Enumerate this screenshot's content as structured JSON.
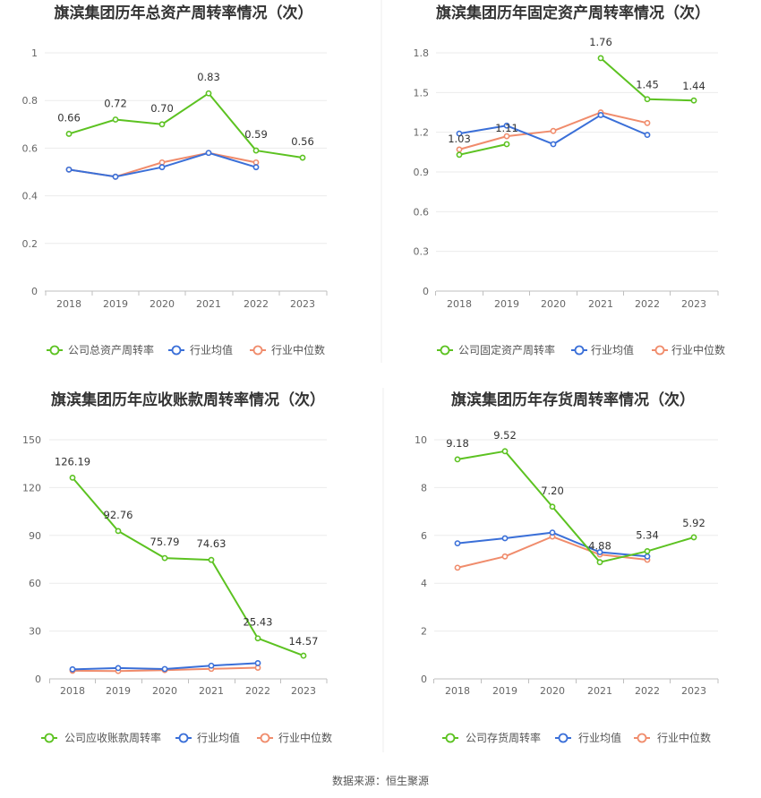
{
  "source_label": "数据来源：恒生聚源",
  "chart_data": [
    {
      "type": "line",
      "title": "旗滨集团历年总资产周转率情况（次）",
      "categories": [
        "2018",
        "2019",
        "2020",
        "2021",
        "2022",
        "2023"
      ],
      "ylim": [
        0,
        1
      ],
      "yticks": [
        "0",
        "0.2",
        "0.4",
        "0.6",
        "0.8",
        "1"
      ],
      "grid": true,
      "legend_position": "bottom",
      "series": [
        {
          "name": "公司总资产周转率",
          "color": "#5cc221",
          "labels": [
            "0.66",
            "0.72",
            "0.70",
            "0.83",
            "0.59",
            "0.56"
          ],
          "values": [
            0.66,
            0.72,
            0.7,
            0.83,
            0.59,
            0.56
          ]
        },
        {
          "name": "行业均值",
          "color": "#3a6fd8",
          "values": [
            0.51,
            0.48,
            0.52,
            0.58,
            0.52,
            null
          ]
        },
        {
          "name": "行业中位数",
          "color": "#f08c6c",
          "values": [
            0.51,
            0.48,
            0.54,
            0.58,
            0.54,
            null
          ]
        }
      ]
    },
    {
      "type": "line",
      "title": "旗滨集团历年固定资产周转率情况（次）",
      "categories": [
        "2018",
        "2019",
        "2020",
        "2021",
        "2022",
        "2023"
      ],
      "ylim": [
        0,
        1.8
      ],
      "yticks": [
        "0",
        "0.3",
        "0.6",
        "0.9",
        "1.2",
        "1.5",
        "1.8"
      ],
      "grid": true,
      "legend_position": "bottom",
      "series": [
        {
          "name": "公司固定资产周转率",
          "color": "#5cc221",
          "labels": [
            "1.03",
            "1.11",
            null,
            "1.76",
            "1.45",
            "1.44"
          ],
          "values": [
            1.03,
            1.11,
            null,
            1.76,
            1.45,
            1.44
          ]
        },
        {
          "name": "行业均值",
          "color": "#3a6fd8",
          "values": [
            1.19,
            1.25,
            1.11,
            1.33,
            1.18,
            null
          ]
        },
        {
          "name": "行业中位数",
          "color": "#f08c6c",
          "values": [
            1.07,
            1.17,
            1.21,
            1.35,
            1.27,
            null
          ]
        }
      ]
    },
    {
      "type": "line",
      "title": "旗滨集团历年应收账款周转率情况（次）",
      "categories": [
        "2018",
        "2019",
        "2020",
        "2021",
        "2022",
        "2023"
      ],
      "ylim": [
        0,
        150
      ],
      "yticks": [
        "0",
        "30",
        "60",
        "90",
        "120",
        "150"
      ],
      "grid": true,
      "legend_position": "bottom",
      "series": [
        {
          "name": "公司应收账款周转率",
          "color": "#5cc221",
          "labels": [
            "126.19",
            "92.76",
            "75.79",
            "74.63",
            "25.43",
            "14.57"
          ],
          "values": [
            126.19,
            92.76,
            75.79,
            74.63,
            25.43,
            14.57
          ]
        },
        {
          "name": "行业均值",
          "color": "#3a6fd8",
          "values": [
            6.0,
            6.8,
            6.2,
            8.3,
            9.9,
            null
          ]
        },
        {
          "name": "行业中位数",
          "color": "#f08c6c",
          "values": [
            5.1,
            4.9,
            5.5,
            6.3,
            7.0,
            null
          ]
        }
      ]
    },
    {
      "type": "line",
      "title": "旗滨集团历年存货周转率情况（次）",
      "categories": [
        "2018",
        "2019",
        "2020",
        "2021",
        "2022",
        "2023"
      ],
      "ylim": [
        0,
        10
      ],
      "yticks": [
        "0",
        "2",
        "4",
        "6",
        "8",
        "10"
      ],
      "grid": true,
      "legend_position": "bottom",
      "series": [
        {
          "name": "公司存货周转率",
          "color": "#5cc221",
          "labels": [
            "9.18",
            "9.52",
            "7.20",
            "4.88",
            "5.34",
            "5.92"
          ],
          "values": [
            9.18,
            9.52,
            7.2,
            4.88,
            5.34,
            5.92
          ]
        },
        {
          "name": "行业均值",
          "color": "#3a6fd8",
          "values": [
            5.67,
            5.88,
            6.12,
            5.3,
            5.12,
            null
          ]
        },
        {
          "name": "行业中位数",
          "color": "#f08c6c",
          "values": [
            4.65,
            5.12,
            5.95,
            5.2,
            4.98,
            null
          ]
        }
      ]
    }
  ]
}
